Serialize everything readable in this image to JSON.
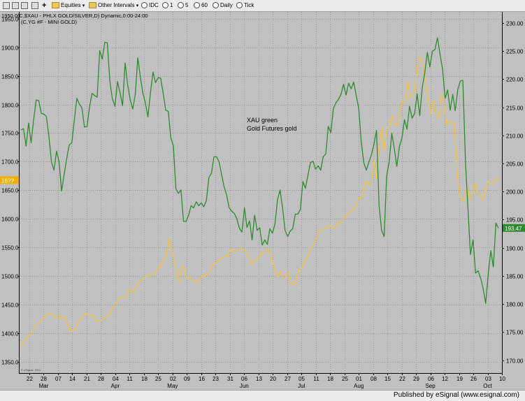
{
  "toolbar": {
    "items": [
      "Equities",
      "Other Intervals",
      "IDC",
      "1",
      "5",
      "60",
      "Daily",
      "Tick"
    ]
  },
  "chart_header": {
    "line1": "1950.0(C,$XAU - PHLX GOLD/SILVER,D) Dynamic,0:00-24:00",
    "line2": "(C,YG #F - MINI GOLD)"
  },
  "annotation": {
    "line1": "XAU green",
    "line2": "Gold Futures gold"
  },
  "watermark": "© eSignal, 2011",
  "footer": {
    "text": "Published by eSignal (www.esignal.com)"
  },
  "colors": {
    "background": "#c0c0c0",
    "xau": "#2e8b2e",
    "gold": "#f0c040",
    "grid": "#999999",
    "gold_badge": "#f0b000",
    "xau_badge": "#2e8b2e"
  },
  "chart_data": {
    "type": "line",
    "left_axis": {
      "ylim": [
        1330,
        1962
      ],
      "ticks": [
        1350,
        1400,
        1450,
        1500,
        1550,
        1600,
        1650,
        1700,
        1750,
        1800,
        1850,
        1900,
        1950
      ],
      "tick_labels": [
        "1350.0",
        "1400.0",
        "1450.0",
        "1500.0",
        "1550.0",
        "1600.0",
        "1650.0",
        "1700.0",
        "1750.0",
        "1800.0",
        "1850.0",
        "1900.0",
        "1950.0"
      ],
      "current_badge": {
        "label": "16??",
        "value": 1667
      }
    },
    "right_axis": {
      "ylim": [
        167.7,
        232.0
      ],
      "ticks": [
        170,
        175,
        180,
        185,
        190,
        195,
        200,
        205,
        210,
        215,
        220,
        225,
        230
      ],
      "tick_labels": [
        "170.00",
        "175.00",
        "180.00",
        "185.00",
        "190.00",
        "195.00",
        "200.00",
        "205.00",
        "210.00",
        "215.00",
        "220.00",
        "225.00",
        "230.00"
      ],
      "current_badge": {
        "label": "193.47",
        "value": 193.47
      }
    },
    "x_axis": {
      "day_ticks": [
        "22",
        "28",
        "07",
        "14",
        "21",
        "28",
        "04",
        "11",
        "18",
        "25",
        "02",
        "09",
        "16",
        "23",
        "31",
        "06",
        "13",
        "20",
        "27",
        "05",
        "11",
        "18",
        "25",
        "01",
        "08",
        "15",
        "22",
        "29",
        "06",
        "12",
        "19",
        "26",
        "03",
        "10"
      ],
      "month_labels": [
        {
          "label": "Mar",
          "tick": 1
        },
        {
          "label": "Apr",
          "tick": 6
        },
        {
          "label": "May",
          "tick": 10
        },
        {
          "label": "Jun",
          "tick": 15
        },
        {
          "label": "Jul",
          "tick": 19
        },
        {
          "label": "Aug",
          "tick": 23
        },
        {
          "label": "Sep",
          "tick": 28
        },
        {
          "label": "Oct",
          "tick": 32
        }
      ]
    },
    "grid": true,
    "series": [
      {
        "axis": "right",
        "values": [
          211,
          211.2,
          208.1,
          212.2,
          208.7,
          212.9,
          216.3,
          216.2,
          213.9,
          213.8,
          213.4,
          209.8,
          205.3,
          203.8,
          207.2,
          205.3,
          200.1,
          203.1,
          205.9,
          208.3,
          208.7,
          212.7,
          216.6,
          215.6,
          214.9,
          211.5,
          211.6,
          215.1,
          217.5,
          217.1,
          216.8,
          225.1,
          223.6,
          226.6,
          226.5,
          219.6,
          216.5,
          215.2,
          219.6,
          217.6,
          215.3,
          222.9,
          219,
          216.4,
          214.7,
          217.3,
          223.8,
          220.4,
          217.5,
          215.8,
          213.3,
          217.7,
          221.3,
          219.4,
          220.3,
          220.2,
          217.5,
          214.5,
          214.3,
          209.6,
          208.2,
          200.5,
          199.7,
          200.3,
          194.7,
          194.7,
          195.8,
          197.5,
          197.1,
          198.2,
          197.5,
          198,
          197.3,
          198.4,
          202.5,
          203.3,
          206.2,
          206.2,
          205.3,
          203,
          200.9,
          199.3,
          197.1,
          196.5,
          196.1,
          195.2,
          193.5,
          192.8,
          197.1,
          193.6,
          194.8,
          191.4,
          195.8,
          193.1,
          193.6,
          190.5,
          191.4,
          190.6,
          193.4,
          192.6,
          194.2,
          198.5,
          200.3,
          197.1,
          193.1,
          192,
          193,
          193.4,
          196,
          196,
          196.8,
          201.8,
          200.6,
          202.9,
          205.2,
          205.4,
          204,
          204.6,
          203.8,
          206.2,
          206.7,
          211.6,
          210.5,
          214.8,
          215.8,
          216.4,
          217.3,
          219.1,
          217.2,
          219.3,
          218.3,
          219.5,
          217.1,
          214.8,
          208.8,
          205.1,
          203.8,
          205.3,
          206.6,
          208.5,
          210.9,
          197.4,
          193.1,
          192,
          202.8,
          205.4,
          210.4,
          207.7,
          204.5,
          208,
          209.5,
          212.8,
          211.1,
          215.2,
          213.1,
          213.9,
          217.4,
          213.5,
          218.5,
          221.1,
          224.8,
          222.2,
          225,
          225.3,
          227.4,
          224.5,
          221.8,
          216.6,
          218.1,
          214.5,
          217.3,
          214.4,
          218.2,
          219.7,
          219.8,
          205.4,
          196.9,
          188.8,
          191.4,
          185.5,
          185.9,
          184.6,
          182.7,
          180.1,
          185.4,
          189.5,
          186.6,
          194.4,
          193.5
        ]
      },
      {
        "axis": "left",
        "values": [
          1375,
          1384,
          1388,
          1396,
          1398,
          1409,
          1415,
          1418,
          1422,
          1428,
          1433,
          1434,
          1433,
          1427,
          1426,
          1431,
          1425,
          1429,
          1413,
          1403,
          1405,
          1406,
          1419,
          1424,
          1428,
          1435,
          1432,
          1431,
          1430,
          1420,
          1422,
          1422,
          1426,
          1428,
          1432,
          1440,
          1447,
          1453,
          1461,
          1464,
          1462,
          1469,
          1477,
          1471,
          1475,
          1486,
          1491,
          1494,
          1499,
          1500,
          1503,
          1501,
          1507,
          1515,
          1515,
          1528,
          1535,
          1566,
          1546,
          1531,
          1505,
          1488,
          1517,
          1511,
          1496,
          1498,
          1492,
          1490,
          1487,
          1494,
          1502,
          1499,
          1503,
          1510,
          1519,
          1522,
          1528,
          1530,
          1533,
          1536,
          1533,
          1547,
          1544,
          1543,
          1545,
          1548,
          1546,
          1540,
          1532,
          1521,
          1528,
          1529,
          1534,
          1541,
          1542,
          1547,
          1544,
          1523,
          1506,
          1499,
          1508,
          1498,
          1497,
          1506,
          1488,
          1483,
          1490,
          1510,
          1511,
          1524,
          1530,
          1540,
          1549,
          1558,
          1567,
          1579,
          1581,
          1582,
          1587,
          1588,
          1583,
          1584,
          1593,
          1591,
          1601,
          1602,
          1610,
          1611,
          1617,
          1619,
          1637,
          1634,
          1649,
          1666,
          1659,
          1664,
          1701,
          1671,
          1718,
          1760,
          1719,
          1758,
          1762,
          1781,
          1765,
          1764,
          1791,
          1807,
          1803,
          1839,
          1812,
          1820,
          1823,
          1882,
          1881,
          1864,
          1839,
          1804,
          1784,
          1806,
          1780,
          1775,
          1817,
          1808,
          1764,
          1771,
          1768,
          1766,
          1688,
          1640,
          1631,
          1635,
          1657,
          1633,
          1641,
          1662,
          1645,
          1642,
          1632,
          1650,
          1665,
          1663,
          1660,
          1671,
          1667
        ]
      }
    ]
  }
}
